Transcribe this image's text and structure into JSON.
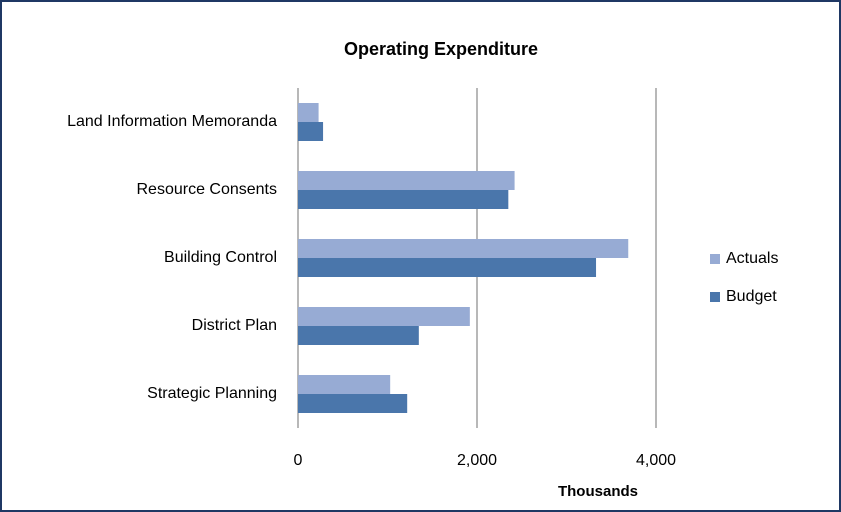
{
  "chart_data": {
    "type": "bar",
    "orientation": "horizontal",
    "title": "Operating Expenditure",
    "x_label": "Thousands",
    "categories": [
      "Land Information Memoranda",
      "Resource Consents",
      "Building Control",
      "District Plan",
      "Strategic Planning"
    ],
    "series": [
      {
        "name": "Actuals",
        "color": "#97abd4",
        "values": [
          230,
          2420,
          3690,
          1920,
          1030
        ]
      },
      {
        "name": "Budget",
        "color": "#4a76ab",
        "values": [
          280,
          2350,
          3330,
          1350,
          1220
        ]
      }
    ],
    "xlim": [
      0,
      4000
    ],
    "xticks": [
      0,
      {
        "value": 2000,
        "label": "2,000"
      },
      {
        "value": 4000,
        "label": "4,000"
      }
    ],
    "grid": true,
    "legend": "right"
  }
}
